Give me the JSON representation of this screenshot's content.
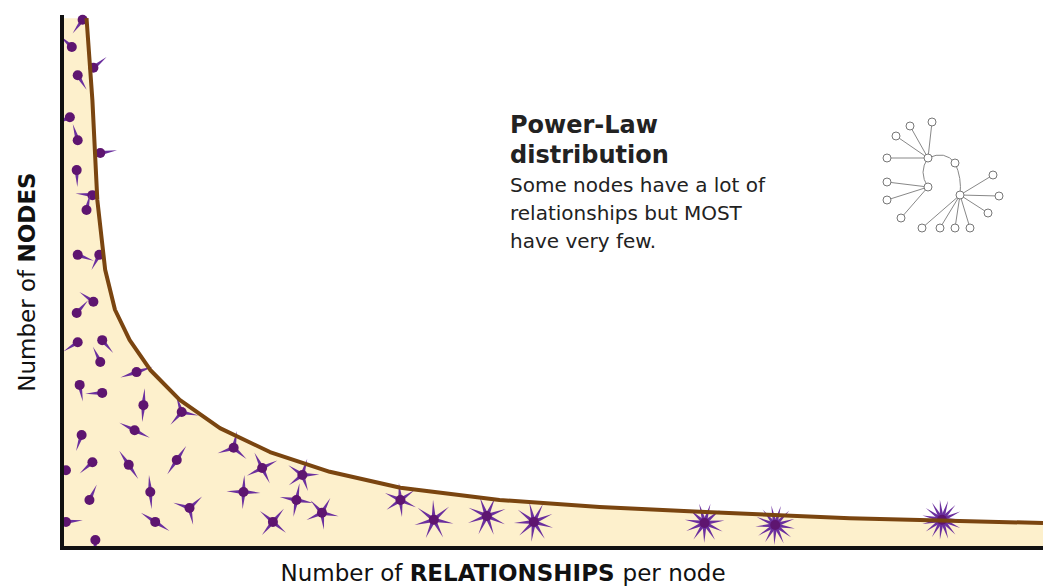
{
  "chart_data": {
    "type": "area",
    "title": [
      "Power-Law",
      "distribution"
    ],
    "annotation": [
      "Some nodes have a lot of",
      "relationships but MOST",
      "have very few."
    ],
    "xlabel": "Number of RELATIONSHIPS per node",
    "ylabel": "Number of NODES",
    "xlim": [
      0,
      100
    ],
    "ylim": [
      0,
      100
    ],
    "tick_labels": false,
    "grid": false,
    "series": [
      {
        "type": "area",
        "color": "#7a4510",
        "x": [
          2.5,
          3.1,
          3.6,
          4.4,
          5.4,
          6.9,
          9.0,
          12.0,
          16.1,
          21.2,
          27.3,
          34.5,
          44.6,
          54.8,
          65.0,
          80.3,
          90.5,
          100
        ],
        "values": [
          99.4,
          84,
          65.3,
          52.2,
          44.7,
          39,
          33.4,
          27.8,
          22.5,
          18,
          14.3,
          11.3,
          9.0,
          7.7,
          6.8,
          5.6,
          5.1,
          4.7
        ]
      },
      {
        "type": "scatter",
        "color": "#5e1570",
        "marker": "star",
        "x": [
          2.1,
          1.0,
          3.2,
          1.6,
          0.8,
          1.6,
          3.9,
          1.5,
          3.1,
          2.5,
          1.6,
          3.8,
          3.2,
          1.5,
          4.1,
          1.6,
          3.9,
          7.6,
          1.8,
          4.1,
          8.3,
          12.2,
          2.0,
          7.4,
          11.7,
          17.5,
          3.1,
          6.8,
          20.4,
          24.5,
          0.4,
          9.0,
          18.5,
          23.9,
          13.0,
          2.8,
          9.5,
          21.5,
          26.5,
          34.5,
          37.9,
          43.3,
          48.1,
          0.4,
          3.4,
          65.5,
          72.7,
          89.7
        ],
        "values": [
          99.1,
          94.0,
          90.1,
          88.7,
          80.8,
          76.5,
          74.1,
          70.9,
          66.2,
          63.4,
          55.0,
          55.0,
          46.2,
          44.1,
          39.0,
          38.6,
          34.9,
          33.0,
          30.6,
          29.1,
          26.8,
          25.5,
          21.2,
          22.1,
          16.5,
          18.8,
          16.1,
          15.6,
          15.0,
          13.7,
          14.6,
          10.5,
          10.5,
          9.0,
          7.5,
          9.0,
          4.9,
          4.9,
          6.6,
          9.0,
          5.3,
          6.0,
          4.9,
          4.9,
          1.5,
          4.7,
          4.3,
          5.3
        ]
      }
    ]
  }
}
